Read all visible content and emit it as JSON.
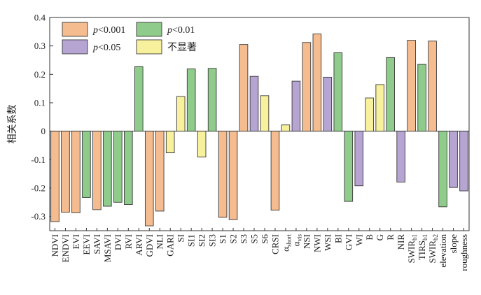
{
  "chart_data": {
    "type": "bar",
    "ylabel": "相关系数",
    "ylim": [
      -0.35,
      0.4
    ],
    "yticks": [
      "0.4",
      "0.3",
      "0.2",
      "0.1",
      "0",
      "-0.1",
      "-0.2",
      "-0.3"
    ],
    "ytick_values": [
      0.4,
      0.3,
      0.2,
      0.1,
      0,
      -0.1,
      -0.2,
      -0.3
    ],
    "grid": false,
    "legend_position": "top-left",
    "legend": [
      {
        "label": "p<0.001",
        "color": "#f5bc8f"
      },
      {
        "label": "p<0.01",
        "color": "#8fcb8b"
      },
      {
        "label": "p<0.05",
        "color": "#b6a4d2"
      },
      {
        "label": "不显著",
        "color": "#f7f09c"
      }
    ],
    "bars": [
      {
        "label": "NDVI",
        "value": -0.318,
        "sig": 0
      },
      {
        "label": "ENDVI",
        "value": -0.285,
        "sig": 0
      },
      {
        "label": "EVI",
        "value": -0.287,
        "sig": 0
      },
      {
        "label": "EEVI",
        "value": -0.233,
        "sig": 1
      },
      {
        "label": "SAVI",
        "value": -0.276,
        "sig": 0
      },
      {
        "label": "MSAVI",
        "value": -0.264,
        "sig": 1
      },
      {
        "label": "DVI",
        "value": -0.25,
        "sig": 1
      },
      {
        "label": "RVI",
        "value": -0.258,
        "sig": 1
      },
      {
        "label": "ARVI",
        "value": 0.227,
        "sig": 1
      },
      {
        "label": "GDVI",
        "value": -0.333,
        "sig": 0
      },
      {
        "label": "NLI",
        "value": -0.281,
        "sig": 0
      },
      {
        "label": "GARI",
        "value": -0.076,
        "sig": 3
      },
      {
        "label": "SI",
        "value": 0.122,
        "sig": 3
      },
      {
        "label": "SI1",
        "value": 0.219,
        "sig": 1
      },
      {
        "label": "SI2",
        "value": -0.091,
        "sig": 3
      },
      {
        "label": "SI3",
        "value": 0.221,
        "sig": 1
      },
      {
        "label": "S1",
        "value": -0.303,
        "sig": 0
      },
      {
        "label": "S2",
        "value": -0.311,
        "sig": 0
      },
      {
        "label": "S3",
        "value": 0.305,
        "sig": 0
      },
      {
        "label": "S5",
        "value": 0.193,
        "sig": 2
      },
      {
        "label": "S6",
        "value": 0.125,
        "sig": 3
      },
      {
        "label": "CRSI",
        "value": -0.278,
        "sig": 0
      },
      {
        "label": "α",
        "sub": "short",
        "value": 0.022,
        "sig": 3
      },
      {
        "label": "α",
        "sub": "vis",
        "value": 0.176,
        "sig": 2
      },
      {
        "label": "NSI",
        "value": 0.312,
        "sig": 0
      },
      {
        "label": "NWI",
        "value": 0.342,
        "sig": 0
      },
      {
        "label": "WSI",
        "value": 0.19,
        "sig": 2
      },
      {
        "label": "BI",
        "value": 0.276,
        "sig": 1
      },
      {
        "label": "GVI",
        "value": -0.247,
        "sig": 1
      },
      {
        "label": "WI",
        "value": -0.192,
        "sig": 2
      },
      {
        "label": "B",
        "value": 0.117,
        "sig": 3
      },
      {
        "label": "G",
        "value": 0.164,
        "sig": 3
      },
      {
        "label": "R",
        "value": 0.259,
        "sig": 1
      },
      {
        "label": "NIR",
        "value": -0.179,
        "sig": 2
      },
      {
        "label": "SWIR",
        "sub": "b1",
        "value": 0.32,
        "sig": 0
      },
      {
        "label": "TIRS",
        "sub": "b1",
        "value": 0.235,
        "sig": 1
      },
      {
        "label": "SWIR",
        "sub": "b2",
        "value": 0.317,
        "sig": 0
      },
      {
        "label": "elevation",
        "value": -0.266,
        "sig": 1
      },
      {
        "label": "slope",
        "value": -0.198,
        "sig": 2
      },
      {
        "label": "roughness",
        "value": -0.21,
        "sig": 2
      }
    ]
  }
}
